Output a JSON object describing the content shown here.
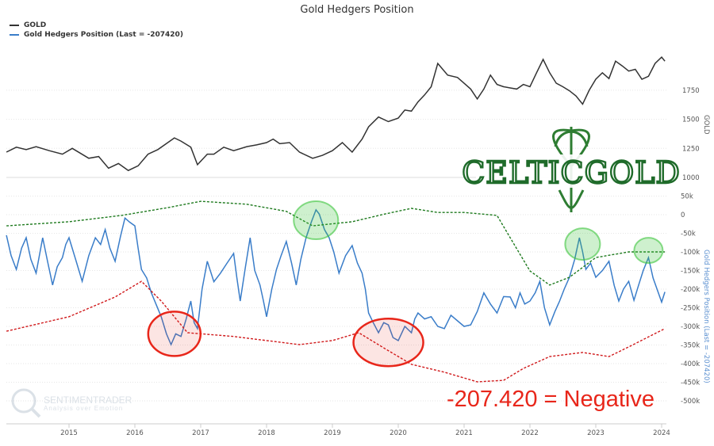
{
  "chart_data": {
    "type": "line",
    "title": "Gold Hedgers Position",
    "legend": [
      "GOLD",
      "Gold Hedgers Position (Last = -207420)"
    ],
    "legend_position": "top-left",
    "grid": true,
    "x_ticks": [
      "2015",
      "2016",
      "2017",
      "2018",
      "2019",
      "2020",
      "2021",
      "2022",
      "2023",
      "2024"
    ],
    "xlim": [
      2014.05,
      2024.1
    ],
    "y_gold": {
      "label": "GOLD",
      "ticks": [
        "1750",
        "1500",
        "1250",
        "1000"
      ],
      "range": [
        1000,
        2050
      ]
    },
    "y_hedgers": {
      "label": "Gold Hedgers Position (Last = -207420)",
      "ticks": [
        "50k",
        "0",
        "-50k",
        "-100k",
        "-150k",
        "-200k",
        "-250k",
        "-300k",
        "-350k",
        "-400k",
        "-450k",
        "-500k"
      ],
      "range": [
        -500000,
        50000
      ]
    },
    "series": [
      {
        "name": "GOLD",
        "color": "#333333",
        "axis": "gold",
        "points": [
          [
            2014.05,
            1218
          ],
          [
            2014.2,
            1260
          ],
          [
            2014.35,
            1240
          ],
          [
            2014.5,
            1265
          ],
          [
            2014.7,
            1230
          ],
          [
            2014.9,
            1200
          ],
          [
            2015.05,
            1250
          ],
          [
            2015.3,
            1165
          ],
          [
            2015.45,
            1180
          ],
          [
            2015.6,
            1080
          ],
          [
            2015.75,
            1120
          ],
          [
            2015.9,
            1060
          ],
          [
            2016.05,
            1100
          ],
          [
            2016.2,
            1200
          ],
          [
            2016.35,
            1240
          ],
          [
            2016.5,
            1300
          ],
          [
            2016.6,
            1340
          ],
          [
            2016.7,
            1313
          ],
          [
            2016.85,
            1260
          ],
          [
            2016.95,
            1110
          ],
          [
            2017.1,
            1200
          ],
          [
            2017.2,
            1200
          ],
          [
            2017.35,
            1260
          ],
          [
            2017.5,
            1230
          ],
          [
            2017.7,
            1265
          ],
          [
            2017.85,
            1280
          ],
          [
            2018.0,
            1300
          ],
          [
            2018.1,
            1330
          ],
          [
            2018.2,
            1290
          ],
          [
            2018.35,
            1300
          ],
          [
            2018.5,
            1218
          ],
          [
            2018.7,
            1165
          ],
          [
            2018.85,
            1190
          ],
          [
            2019.0,
            1230
          ],
          [
            2019.15,
            1300
          ],
          [
            2019.3,
            1218
          ],
          [
            2019.45,
            1330
          ],
          [
            2019.55,
            1435
          ],
          [
            2019.7,
            1520
          ],
          [
            2019.85,
            1480
          ],
          [
            2020.0,
            1510
          ],
          [
            2020.1,
            1580
          ],
          [
            2020.2,
            1570
          ],
          [
            2020.3,
            1650
          ],
          [
            2020.4,
            1710
          ],
          [
            2020.5,
            1780
          ],
          [
            2020.6,
            1980
          ],
          [
            2020.75,
            1880
          ],
          [
            2020.9,
            1860
          ],
          [
            2021.0,
            1810
          ],
          [
            2021.1,
            1760
          ],
          [
            2021.2,
            1675
          ],
          [
            2021.3,
            1760
          ],
          [
            2021.4,
            1880
          ],
          [
            2021.5,
            1800
          ],
          [
            2021.6,
            1780
          ],
          [
            2021.7,
            1770
          ],
          [
            2021.8,
            1760
          ],
          [
            2021.9,
            1800
          ],
          [
            2022.0,
            1780
          ],
          [
            2022.1,
            1900
          ],
          [
            2022.2,
            2015
          ],
          [
            2022.3,
            1900
          ],
          [
            2022.4,
            1810
          ],
          [
            2022.5,
            1780
          ],
          [
            2022.6,
            1745
          ],
          [
            2022.7,
            1700
          ],
          [
            2022.8,
            1630
          ],
          [
            2022.9,
            1750
          ],
          [
            2023.0,
            1845
          ],
          [
            2023.1,
            1900
          ],
          [
            2023.2,
            1850
          ],
          [
            2023.3,
            2000
          ],
          [
            2023.4,
            1960
          ],
          [
            2023.5,
            1915
          ],
          [
            2023.6,
            1930
          ],
          [
            2023.7,
            1845
          ],
          [
            2023.8,
            1870
          ],
          [
            2023.9,
            1980
          ],
          [
            2024.0,
            2035
          ],
          [
            2024.05,
            2000
          ]
        ]
      },
      {
        "name": "Gold Hedgers Position (Last = -207420)",
        "color": "#3a7dc9",
        "axis": "hedgers",
        "points": [
          [
            2014.05,
            -55000
          ],
          [
            2014.12,
            -110000
          ],
          [
            2014.2,
            -147000
          ],
          [
            2014.28,
            -90000
          ],
          [
            2014.35,
            -62000
          ],
          [
            2014.42,
            -120000
          ],
          [
            2014.5,
            -157000
          ],
          [
            2014.55,
            -110000
          ],
          [
            2014.6,
            -62000
          ],
          [
            2014.68,
            -130000
          ],
          [
            2014.75,
            -189000
          ],
          [
            2014.82,
            -140000
          ],
          [
            2014.9,
            -115000
          ],
          [
            2014.95,
            -80000
          ],
          [
            2015.0,
            -62000
          ],
          [
            2015.1,
            -120000
          ],
          [
            2015.2,
            -179000
          ],
          [
            2015.3,
            -110000
          ],
          [
            2015.4,
            -62000
          ],
          [
            2015.48,
            -80000
          ],
          [
            2015.55,
            -40000
          ],
          [
            2015.62,
            -90000
          ],
          [
            2015.7,
            -125000
          ],
          [
            2015.78,
            -60000
          ],
          [
            2015.85,
            -9000
          ],
          [
            2015.92,
            -20000
          ],
          [
            2016.0,
            -30000
          ],
          [
            2016.05,
            -90000
          ],
          [
            2016.1,
            -147000
          ],
          [
            2016.18,
            -170000
          ],
          [
            2016.25,
            -210000
          ],
          [
            2016.32,
            -240000
          ],
          [
            2016.4,
            -274000
          ],
          [
            2016.48,
            -320000
          ],
          [
            2016.55,
            -349000
          ],
          [
            2016.62,
            -320000
          ],
          [
            2016.7,
            -327000
          ],
          [
            2016.78,
            -280000
          ],
          [
            2016.85,
            -232000
          ],
          [
            2016.9,
            -290000
          ],
          [
            2016.95,
            -306000
          ],
          [
            2017.02,
            -200000
          ],
          [
            2017.1,
            -125000
          ],
          [
            2017.2,
            -180000
          ],
          [
            2017.3,
            -157000
          ],
          [
            2017.4,
            -130000
          ],
          [
            2017.5,
            -104000
          ],
          [
            2017.55,
            -170000
          ],
          [
            2017.6,
            -232000
          ],
          [
            2017.68,
            -140000
          ],
          [
            2017.75,
            -62000
          ],
          [
            2017.82,
            -150000
          ],
          [
            2017.9,
            -189000
          ],
          [
            2017.95,
            -230000
          ],
          [
            2018.0,
            -274000
          ],
          [
            2018.08,
            -200000
          ],
          [
            2018.15,
            -147000
          ],
          [
            2018.22,
            -110000
          ],
          [
            2018.3,
            -72000
          ],
          [
            2018.38,
            -130000
          ],
          [
            2018.45,
            -189000
          ],
          [
            2018.52,
            -120000
          ],
          [
            2018.6,
            -62000
          ],
          [
            2018.68,
            -20000
          ],
          [
            2018.75,
            13000
          ],
          [
            2018.8,
            2000
          ],
          [
            2018.88,
            -40000
          ],
          [
            2018.95,
            -62000
          ],
          [
            2019.02,
            -100000
          ],
          [
            2019.1,
            -157000
          ],
          [
            2019.2,
            -110000
          ],
          [
            2019.3,
            -83000
          ],
          [
            2019.38,
            -130000
          ],
          [
            2019.45,
            -157000
          ],
          [
            2019.5,
            -200000
          ],
          [
            2019.55,
            -264000
          ],
          [
            2019.62,
            -290000
          ],
          [
            2019.7,
            -317000
          ],
          [
            2019.78,
            -290000
          ],
          [
            2019.85,
            -296000
          ],
          [
            2019.92,
            -330000
          ],
          [
            2020.0,
            -338000
          ],
          [
            2020.1,
            -300000
          ],
          [
            2020.2,
            -317000
          ],
          [
            2020.25,
            -280000
          ],
          [
            2020.3,
            -264000
          ],
          [
            2020.4,
            -280000
          ],
          [
            2020.5,
            -274000
          ],
          [
            2020.6,
            -300000
          ],
          [
            2020.7,
            -306000
          ],
          [
            2020.8,
            -270000
          ],
          [
            2020.9,
            -285000
          ],
          [
            2021.0,
            -300000
          ],
          [
            2021.1,
            -296000
          ],
          [
            2021.2,
            -260000
          ],
          [
            2021.3,
            -210000
          ],
          [
            2021.4,
            -240000
          ],
          [
            2021.5,
            -264000
          ],
          [
            2021.6,
            -220000
          ],
          [
            2021.7,
            -221000
          ],
          [
            2021.78,
            -250000
          ],
          [
            2021.85,
            -210000
          ],
          [
            2021.92,
            -240000
          ],
          [
            2022.0,
            -232000
          ],
          [
            2022.08,
            -210000
          ],
          [
            2022.15,
            -179000
          ],
          [
            2022.22,
            -250000
          ],
          [
            2022.3,
            -296000
          ],
          [
            2022.38,
            -260000
          ],
          [
            2022.45,
            -232000
          ],
          [
            2022.52,
            -200000
          ],
          [
            2022.6,
            -168000
          ],
          [
            2022.68,
            -120000
          ],
          [
            2022.75,
            -62000
          ],
          [
            2022.8,
            -100000
          ],
          [
            2022.85,
            -147000
          ],
          [
            2022.92,
            -130000
          ],
          [
            2023.0,
            -168000
          ],
          [
            2023.1,
            -150000
          ],
          [
            2023.2,
            -125000
          ],
          [
            2023.28,
            -190000
          ],
          [
            2023.35,
            -232000
          ],
          [
            2023.42,
            -200000
          ],
          [
            2023.5,
            -179000
          ],
          [
            2023.58,
            -230000
          ],
          [
            2023.65,
            -189000
          ],
          [
            2023.72,
            -150000
          ],
          [
            2023.8,
            -115000
          ],
          [
            2023.87,
            -170000
          ],
          [
            2023.95,
            -210000
          ],
          [
            2024.0,
            -235000
          ],
          [
            2024.05,
            -207420
          ]
        ]
      },
      {
        "name": "",
        "color": "#1e7a1e",
        "axis": "hedgers",
        "dashed": true,
        "points": [
          [
            2014.05,
            -30000
          ],
          [
            2015.0,
            -19000
          ],
          [
            2015.8,
            -2000
          ],
          [
            2016.5,
            19000
          ],
          [
            2017.0,
            36000
          ],
          [
            2017.7,
            28000
          ],
          [
            2018.3,
            9000
          ],
          [
            2018.7,
            -30000
          ],
          [
            2019.3,
            -19000
          ],
          [
            2019.8,
            2000
          ],
          [
            2020.2,
            17000
          ],
          [
            2020.6,
            6000
          ],
          [
            2021.0,
            6000
          ],
          [
            2021.5,
            -2000
          ],
          [
            2021.7,
            -62000
          ],
          [
            2022.0,
            -151000
          ],
          [
            2022.3,
            -189000
          ],
          [
            2022.6,
            -168000
          ],
          [
            2023.0,
            -115000
          ],
          [
            2023.5,
            -100000
          ],
          [
            2024.05,
            -100000
          ]
        ]
      },
      {
        "name": "",
        "color": "#d0191b",
        "axis": "hedgers",
        "dashed": true,
        "points": [
          [
            2014.05,
            -313000
          ],
          [
            2015.0,
            -274000
          ],
          [
            2015.7,
            -221000
          ],
          [
            2016.1,
            -179000
          ],
          [
            2016.4,
            -232000
          ],
          [
            2016.8,
            -317000
          ],
          [
            2017.5,
            -327000
          ],
          [
            2018.0,
            -338000
          ],
          [
            2018.5,
            -349000
          ],
          [
            2019.0,
            -338000
          ],
          [
            2019.4,
            -317000
          ],
          [
            2019.8,
            -360000
          ],
          [
            2020.2,
            -402000
          ],
          [
            2020.7,
            -423000
          ],
          [
            2021.2,
            -449000
          ],
          [
            2021.6,
            -445000
          ],
          [
            2021.9,
            -413000
          ],
          [
            2022.3,
            -381000
          ],
          [
            2022.8,
            -370000
          ],
          [
            2023.2,
            -381000
          ],
          [
            2023.5,
            -355000
          ],
          [
            2024.05,
            -306000
          ]
        ]
      }
    ],
    "annotations": {
      "highlights": [
        {
          "color": "#e8261a",
          "x": 2016.6,
          "y": -320000
        },
        {
          "color": "#e8261a",
          "x": 2019.85,
          "y": -343000
        },
        {
          "color": "#3cc43c",
          "x": 2018.75,
          "y": -15000
        },
        {
          "color": "#3cc43c",
          "x": 2022.8,
          "y": -79000
        },
        {
          "color": "#3cc43c",
          "x": 2023.8,
          "y": -96000
        }
      ],
      "callout": "-207.420 = Negative",
      "logo": "CELTICGOLD",
      "watermark": [
        "SENTIMENTRADER",
        "Analysis over Emotion"
      ]
    }
  }
}
